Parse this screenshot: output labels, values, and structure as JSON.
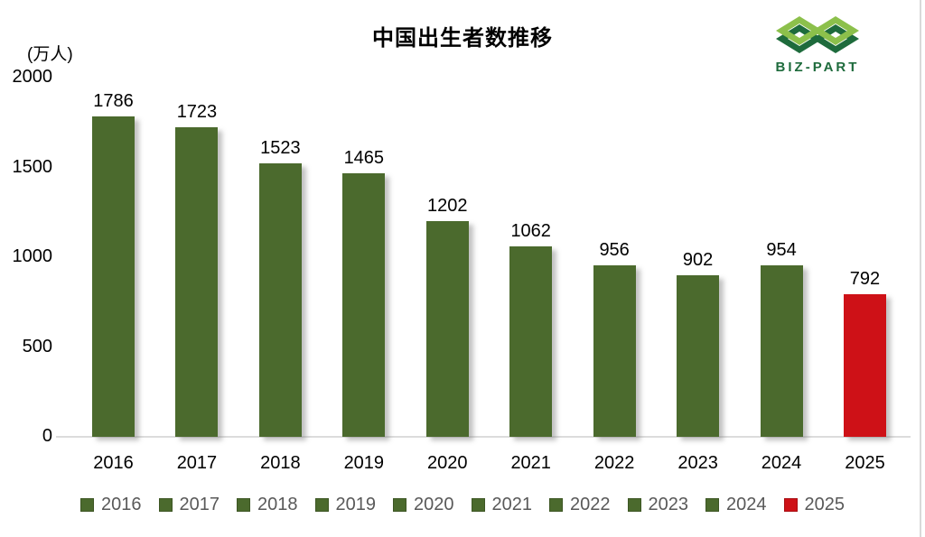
{
  "title": "中国出生者数推移",
  "logo": {
    "text": "BIZ-PART",
    "colors": {
      "light_green": "#8CC04B",
      "dark_green": "#1E6B3C"
    }
  },
  "chart_data": {
    "type": "bar",
    "title": "中国出生者数推移",
    "unit_label": "(万人)",
    "xlabel": "",
    "ylabel": "万人",
    "categories": [
      "2016",
      "2017",
      "2018",
      "2019",
      "2020",
      "2021",
      "2022",
      "2023",
      "2024",
      "2025"
    ],
    "values": [
      1786,
      1723,
      1523,
      1465,
      1202,
      1062,
      956,
      902,
      954,
      792
    ],
    "colors": [
      "#4B6A2D",
      "#4B6A2D",
      "#4B6A2D",
      "#4B6A2D",
      "#4B6A2D",
      "#4B6A2D",
      "#4B6A2D",
      "#4B6A2D",
      "#4B6A2D",
      "#CE1117"
    ],
    "ylim": [
      0,
      2000
    ],
    "yticks": [
      0,
      500,
      1000,
      1500,
      2000
    ],
    "grid": false,
    "data_labels": true,
    "legend": {
      "position": "bottom",
      "entries": [
        "2016",
        "2017",
        "2018",
        "2019",
        "2020",
        "2021",
        "2022",
        "2023",
        "2024",
        "2025"
      ]
    },
    "styles": {
      "bar_default": "#4B6A2D",
      "bar_highlight": "#CE1117",
      "legend_text_color": "#595959",
      "axis_line_color": "#DCDCDC",
      "label_color": "#000000"
    }
  }
}
